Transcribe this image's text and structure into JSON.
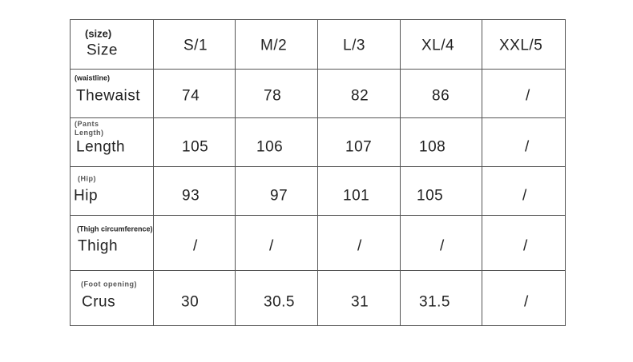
{
  "header": {
    "label_sub": "(size)",
    "label": "Size",
    "sizes": [
      "S/1",
      "M/2",
      "L/3",
      "XL/4",
      "XXL/5"
    ]
  },
  "rows": [
    {
      "sub": "(waistline)",
      "label": "Thewaist",
      "values": [
        "74",
        "78",
        "82",
        "86",
        "/"
      ]
    },
    {
      "sub": "(Pants\nLength)",
      "label": "Length",
      "values": [
        "105",
        "106",
        "107",
        "108",
        "/"
      ]
    },
    {
      "sub": "(Hip)",
      "label": "Hip",
      "values": [
        "93",
        "97",
        "101",
        "105",
        "/"
      ]
    },
    {
      "sub": "(Thigh circumference)",
      "label": "Thigh",
      "values": [
        "/",
        "/",
        "/",
        "/",
        "/"
      ]
    },
    {
      "sub": "(Foot opening)",
      "label": "Crus",
      "values": [
        "30",
        "30.5",
        "31",
        "31.5",
        "/"
      ]
    }
  ]
}
